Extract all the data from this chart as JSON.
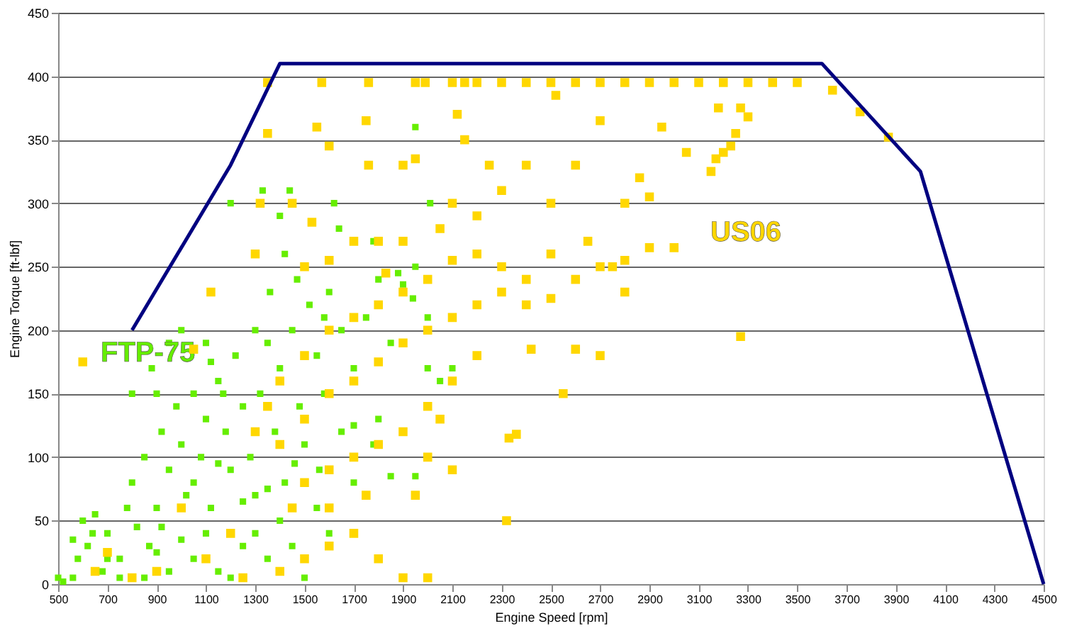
{
  "chart_data": {
    "type": "scatter",
    "xlabel": "Engine Speed [rpm]",
    "ylabel": "Engine Torque [ft-lbf]",
    "xlim": [
      500,
      4500
    ],
    "ylim": [
      0,
      450
    ],
    "xticks": [
      500,
      700,
      900,
      1100,
      1300,
      1500,
      1700,
      1900,
      2100,
      2300,
      2500,
      2700,
      2900,
      3100,
      3300,
      3500,
      3700,
      3900,
      4100,
      4300,
      4500
    ],
    "yticks": [
      0,
      50,
      100,
      150,
      200,
      250,
      300,
      350,
      400,
      450
    ],
    "grid": "y",
    "marker": "square",
    "series": [
      {
        "name": "FTP-75",
        "color": "#66ee00",
        "x": [
          500,
          520,
          560,
          600,
          620,
          650,
          700,
          680,
          750,
          780,
          800,
          820,
          850,
          870,
          900,
          920,
          950,
          980,
          1000,
          1020,
          1050,
          1080,
          1100,
          1120,
          1150,
          1180,
          1200,
          1220,
          1250,
          1280,
          1300,
          1320,
          1350,
          1380,
          1400,
          1420,
          1450,
          1480,
          1500,
          1520,
          1550,
          1580,
          1600,
          1650,
          1700,
          1750,
          1800,
          1850,
          1900,
          1950,
          2000,
          1650,
          1550,
          1450,
          1350,
          1250,
          1150,
          1050,
          950,
          850,
          750,
          1200,
          1330,
          1440,
          1620,
          1640,
          1780,
          1950,
          2010,
          1880,
          1940,
          2100,
          1850,
          1950,
          1780,
          1700,
          1600,
          1500,
          950,
          1000,
          900,
          880,
          1120,
          1170,
          800,
          700,
          640,
          1100,
          1000,
          900,
          1400,
          1300,
          1200,
          1050,
          1150,
          1250,
          1350,
          1460,
          1560,
          1360,
          1420,
          1470,
          1580,
          1700,
          2050,
          2000,
          1800,
          920,
          580,
          560,
          1100,
          1400,
          1300
        ],
        "values": [
          5,
          2,
          5,
          50,
          30,
          55,
          40,
          10,
          20,
          60,
          80,
          45,
          100,
          30,
          60,
          120,
          90,
          140,
          110,
          70,
          150,
          100,
          130,
          60,
          160,
          120,
          90,
          180,
          140,
          100,
          70,
          150,
          190,
          120,
          170,
          80,
          200,
          140,
          110,
          220,
          180,
          150,
          230,
          200,
          170,
          210,
          240,
          190,
          236,
          250,
          210,
          120,
          60,
          30,
          20,
          30,
          10,
          20,
          10,
          5,
          5,
          300,
          310,
          310,
          300,
          280,
          270,
          360,
          300,
          245,
          225,
          170,
          85,
          85,
          110,
          80,
          40,
          5,
          190,
          200,
          150,
          170,
          175,
          150,
          150,
          20,
          40,
          40,
          35,
          25,
          50,
          40,
          5,
          80,
          95,
          65,
          75,
          95,
          90,
          230,
          260,
          240,
          210,
          125,
          160,
          170,
          130,
          45,
          20,
          35,
          190,
          290,
          200
        ]
      },
      {
        "name": "US06",
        "color": "#ffd700",
        "x": [
          1350,
          1570,
          1760,
          1950,
          1990,
          2100,
          2150,
          2200,
          2300,
          2400,
          2500,
          2600,
          2700,
          2800,
          2900,
          3000,
          3100,
          3200,
          3300,
          3400,
          3500,
          3643,
          3755,
          3870,
          3150,
          3170,
          3200,
          3230,
          3250,
          3270,
          3300,
          3180,
          3270,
          2320,
          2330,
          2360,
          600,
          1050,
          1120,
          1300,
          1320,
          1350,
          1550,
          1750,
          1900,
          1950,
          1600,
          2120,
          2150,
          2250,
          2400,
          2500,
          2600,
          2700,
          2800,
          2900,
          2750,
          2650,
          2500,
          2400,
          2300,
          2200,
          2100,
          2000,
          1900,
          1800,
          1700,
          1600,
          1500,
          1400,
          1350,
          1300,
          1400,
          1500,
          1600,
          1700,
          1800,
          1900,
          2000,
          2100,
          2200,
          2300,
          2400,
          2500,
          2600,
          2700,
          2800,
          2900,
          3000,
          2200,
          2100,
          2000,
          1900,
          1800,
          1700,
          1600,
          1500,
          1450,
          1600,
          1700,
          1800,
          1900,
          2000,
          1500,
          1400,
          1600,
          1750,
          1950,
          2050,
          2000,
          2100,
          1200,
          1100,
          1000,
          900,
          800,
          700,
          650,
          1250,
          1500,
          1600,
          1700,
          1800,
          1900,
          2100,
          2200,
          2300,
          1450,
          1530,
          1760,
          1830,
          2050,
          2550,
          2600,
          2420,
          2700,
          2800,
          2860,
          3050,
          2950,
          2520
        ],
        "values": [
          395,
          395,
          395,
          395,
          395,
          395,
          395,
          395,
          395,
          395,
          395,
          395,
          395,
          395,
          395,
          395,
          395,
          395,
          395,
          395,
          395,
          389,
          372,
          352,
          325,
          335,
          340,
          345,
          355,
          375,
          368,
          375,
          195,
          50,
          115,
          118,
          175,
          185,
          230,
          260,
          300,
          355,
          360,
          365,
          330,
          335,
          345,
          370,
          350,
          330,
          330,
          300,
          330,
          365,
          300,
          305,
          250,
          270,
          260,
          240,
          250,
          260,
          255,
          240,
          230,
          220,
          210,
          200,
          180,
          160,
          140,
          120,
          110,
          130,
          150,
          160,
          175,
          190,
          200,
          210,
          220,
          230,
          220,
          225,
          240,
          250,
          255,
          265,
          265,
          180,
          160,
          140,
          120,
          110,
          100,
          90,
          80,
          60,
          60,
          40,
          20,
          5,
          5,
          20,
          10,
          30,
          70,
          70,
          130,
          100,
          90,
          40,
          20,
          60,
          10,
          5,
          25,
          10,
          5,
          250,
          255,
          270,
          270,
          270,
          300,
          290,
          310,
          300,
          285,
          330,
          245,
          280,
          150,
          185,
          185,
          180,
          230,
          320,
          340,
          360,
          385
        ]
      },
      {
        "type": "line",
        "marker": "none",
        "color": "#000080",
        "x": [
          800,
          1200,
          1400,
          3600,
          4000,
          4500
        ],
        "values": [
          200,
          330,
          410,
          410,
          325,
          0
        ]
      }
    ]
  }
}
